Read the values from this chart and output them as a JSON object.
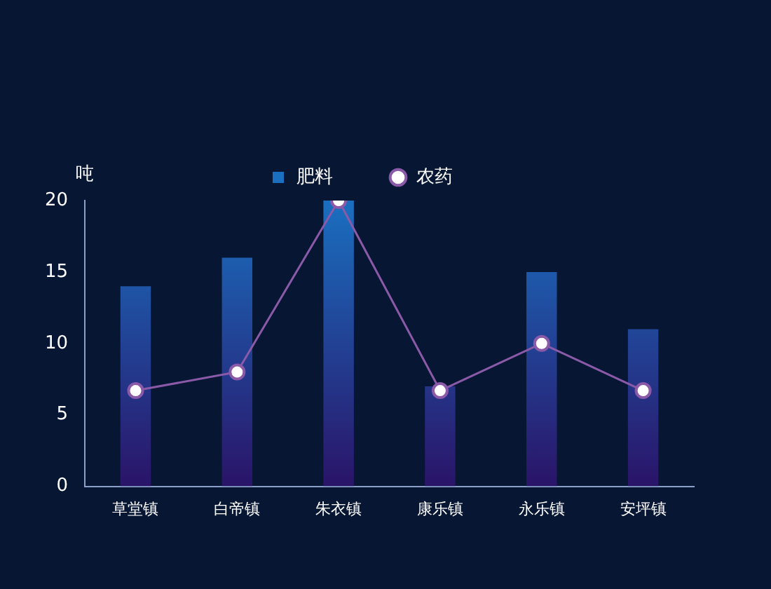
{
  "chart_data": {
    "type": "bar",
    "ylabel": "吨",
    "categories": [
      "草堂镇",
      "白帝镇",
      "朱衣镇",
      "康乐镇",
      "永乐镇",
      "安坪镇"
    ],
    "series": [
      {
        "name": "肥料",
        "color": "#1a6fc0",
        "values": [
          14,
          16,
          20,
          7,
          15,
          11
        ]
      },
      {
        "name": "农药",
        "type": "line",
        "color": "#8a5aa8",
        "values": [
          6.7,
          8,
          20,
          6.7,
          10,
          6.7
        ]
      }
    ],
    "ylim": [
      0,
      20
    ],
    "yticks": [
      0,
      5,
      10,
      15,
      20
    ],
    "grid": false,
    "legend": "top",
    "marker": "circle"
  }
}
